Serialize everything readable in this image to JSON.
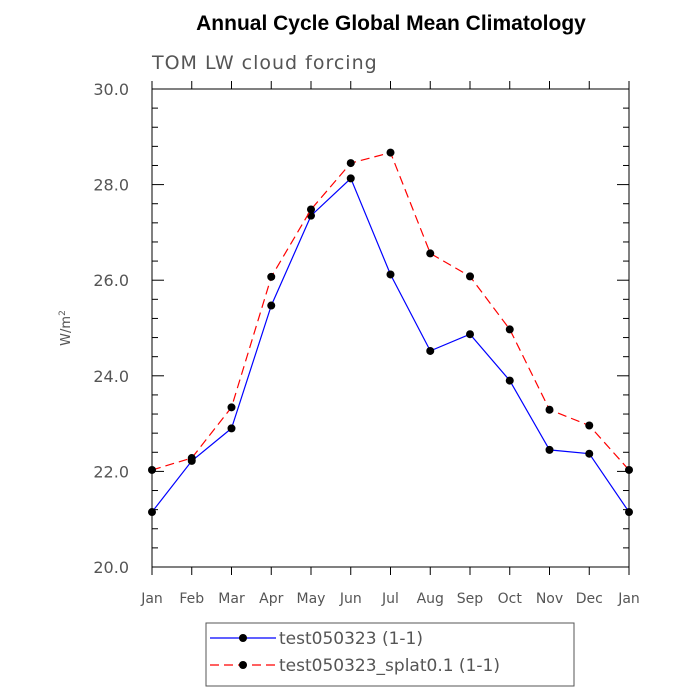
{
  "chart_data": {
    "type": "line",
    "title": "Annual Cycle Global Mean Climatology",
    "subtitle": "TOM LW cloud forcing",
    "xlabel": "",
    "ylabel": "W/m",
    "ylabel_sup": "2",
    "ylim": [
      20.0,
      30.0
    ],
    "yticks": [
      "20.0",
      "22.0",
      "24.0",
      "26.0",
      "28.0",
      "30.0"
    ],
    "categories": [
      "Jan",
      "Feb",
      "Mar",
      "Apr",
      "May",
      "Jun",
      "Jul",
      "Aug",
      "Sep",
      "Oct",
      "Nov",
      "Dec",
      "Jan"
    ],
    "series": [
      {
        "name": "test050323 (1-1)",
        "color": "#0000ff",
        "dash": "solid",
        "values": [
          21.15,
          22.22,
          22.9,
          25.47,
          27.35,
          28.13,
          26.12,
          24.52,
          24.87,
          23.9,
          22.45,
          22.37,
          21.15
        ]
      },
      {
        "name": "test050323_splat0.1 (1-1)",
        "color": "#ff0000",
        "dash": "dashed",
        "values": [
          22.03,
          22.28,
          23.34,
          26.07,
          27.48,
          28.45,
          28.67,
          26.56,
          26.08,
          24.97,
          23.29,
          22.96,
          22.03
        ]
      }
    ]
  }
}
